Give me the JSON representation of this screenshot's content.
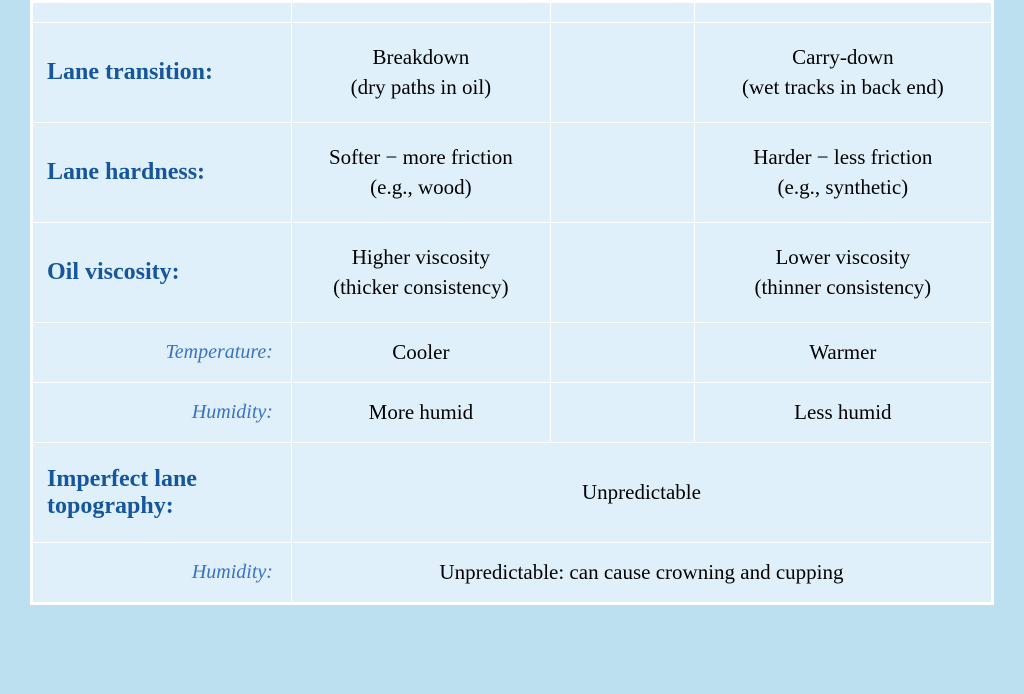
{
  "table": {
    "background_color": "#dff0fa",
    "border_color": "#ffffff",
    "page_background": "#bce0f0",
    "label_color": "#15569c",
    "sublabel_color": "#3a72c2",
    "text_color": "#000000",
    "columns": [
      "label",
      "left_value",
      "gap",
      "right_value"
    ],
    "column_widths_pct": [
      27,
      27,
      15,
      31
    ],
    "rows": [
      {
        "type": "main",
        "label": "Lane transition:",
        "left": "Breakdown\n(dry paths in oil)",
        "right": "Carry-down\n(wet tracks in back end)"
      },
      {
        "type": "main",
        "label": "Lane hardness:",
        "left": "Softer − more friction\n(e.g., wood)",
        "right": "Harder − less friction\n(e.g., synthetic)"
      },
      {
        "type": "main",
        "label": "Oil viscosity:",
        "left": "Higher viscosity\n(thicker consistency)",
        "right": "Lower viscosity\n(thinner consistency)"
      },
      {
        "type": "sub",
        "label": "Temperature:",
        "left": "Cooler",
        "right": "Warmer"
      },
      {
        "type": "sub",
        "label": "Humidity:",
        "left": "More humid",
        "right": "Less humid"
      },
      {
        "type": "main_merged",
        "label": "Imperfect lane topography:",
        "merged": "Unpredictable"
      },
      {
        "type": "sub_merged",
        "label": "Humidity:",
        "merged": "Unpredictable: can cause crowning and cupping"
      }
    ],
    "label_fontsize": 24,
    "sublabel_fontsize": 20,
    "value_fontsize": 21
  }
}
